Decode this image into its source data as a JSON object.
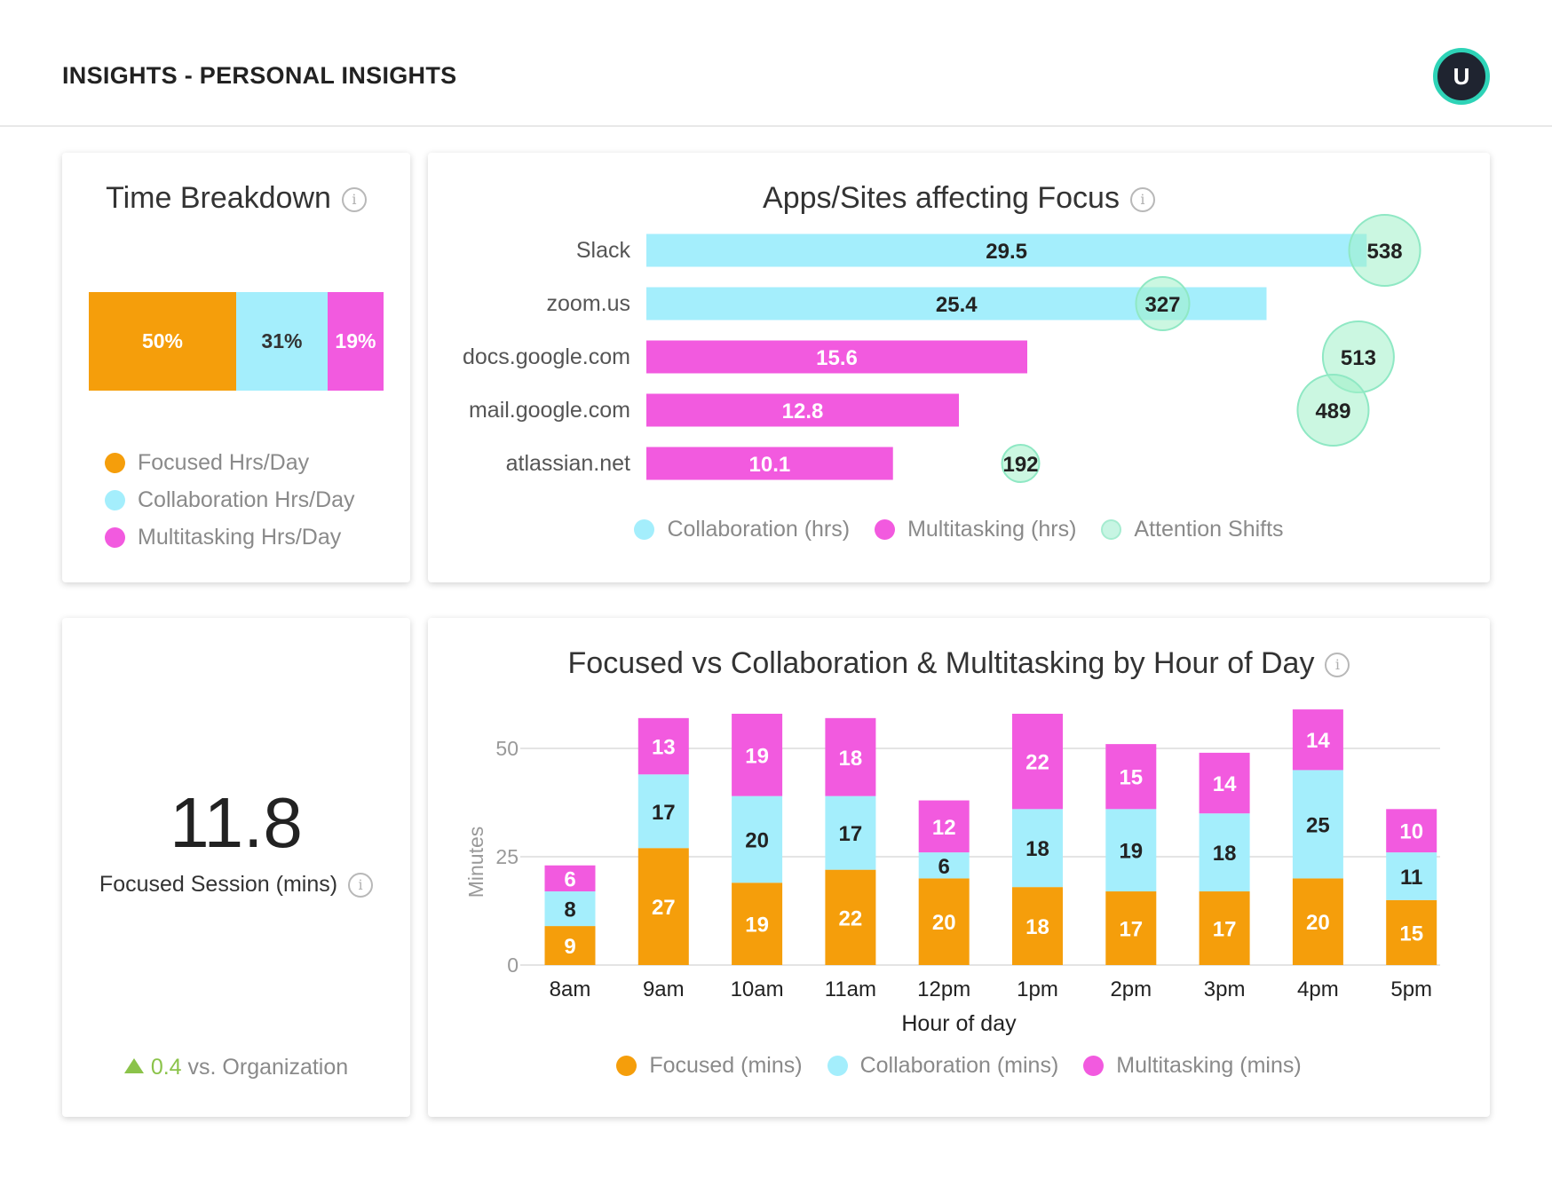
{
  "header": {
    "title": "INSIGHTS - PERSONAL INSIGHTS",
    "avatar_initial": "U"
  },
  "colors": {
    "focused": "#f59e0b",
    "collaboration": "#a4eefc",
    "multitasking": "#f25adf",
    "attention": "#c7f5e3",
    "positive": "#8bc34a"
  },
  "time_breakdown": {
    "title": "Time Breakdown",
    "info_icon": "info-icon",
    "segments": [
      {
        "label": "50%",
        "value": 50
      },
      {
        "label": "31%",
        "value": 31
      },
      {
        "label": "19%",
        "value": 19
      }
    ],
    "legend": [
      "Focused Hrs/Day",
      "Collaboration Hrs/Day",
      "Multitasking Hrs/Day"
    ]
  },
  "focus_apps": {
    "title": "Apps/Sites affecting Focus",
    "legend": [
      "Collaboration (hrs)",
      "Multitasking (hrs)",
      "Attention Shifts"
    ]
  },
  "focused_session": {
    "value": "11.8",
    "label": "Focused Session (mins)",
    "comparison_value": "0.4",
    "comparison_text": "vs. Organization"
  },
  "hourly": {
    "title": "Focused vs Collaboration & Multitasking by Hour of Day",
    "legend": [
      "Focused (mins)",
      "Collaboration (mins)",
      "Multitasking (mins)"
    ]
  },
  "chart_data": [
    {
      "type": "bar",
      "orientation": "horizontal",
      "title": "Apps/Sites affecting Focus",
      "categories": [
        "Slack",
        "zoom.us",
        "docs.google.com",
        "mail.google.com",
        "atlassian.net"
      ],
      "series": [
        {
          "name": "Collaboration (hrs)",
          "values": [
            29.5,
            25.4,
            null,
            null,
            null
          ]
        },
        {
          "name": "Multitasking (hrs)",
          "values": [
            null,
            null,
            15.6,
            12.8,
            10.1
          ]
        },
        {
          "name": "Attention Shifts",
          "values": [
            538,
            327,
            513,
            489,
            192
          ]
        }
      ],
      "xlim": [
        0,
        31
      ]
    },
    {
      "type": "bar",
      "stacked": true,
      "title": "Focused vs Collaboration & Multitasking by Hour of Day",
      "categories": [
        "8am",
        "9am",
        "10am",
        "11am",
        "12pm",
        "1pm",
        "2pm",
        "3pm",
        "4pm",
        "5pm"
      ],
      "series": [
        {
          "name": "Focused (mins)",
          "values": [
            9,
            27,
            19,
            22,
            20,
            18,
            17,
            17,
            20,
            15
          ]
        },
        {
          "name": "Collaboration (mins)",
          "values": [
            8,
            17,
            20,
            17,
            6,
            18,
            19,
            18,
            25,
            11
          ]
        },
        {
          "name": "Multitasking (mins)",
          "values": [
            6,
            13,
            19,
            18,
            12,
            22,
            15,
            14,
            14,
            10
          ]
        }
      ],
      "xlabel": "Hour of day",
      "ylabel": "Minutes",
      "yticks": [
        "0",
        "25",
        "50"
      ],
      "ylim": [
        0,
        59
      ]
    }
  ]
}
